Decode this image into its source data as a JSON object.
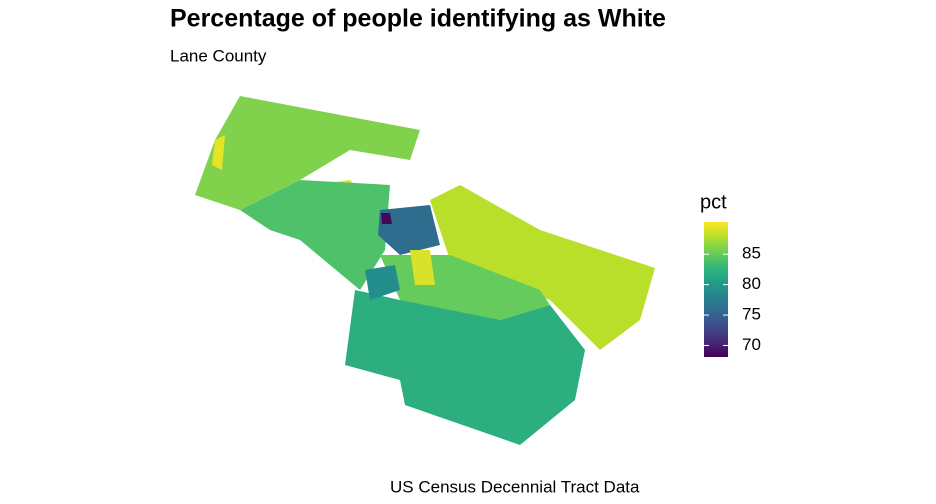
{
  "chart_data": {
    "type": "choropleth",
    "title": "Percentage of people identifying as White",
    "subtitle": "Lane County",
    "caption": "US Census Decennial Tract Data",
    "legend_title": "pct",
    "colormap": "viridis",
    "clim": [
      68.1,
      90.3
    ],
    "cticks": [
      70,
      75,
      80,
      85
    ],
    "regions": {
      "values": [
        86,
        89,
        84,
        76,
        68.5,
        88,
        85,
        82,
        79,
        89,
        89.5
      ]
    }
  }
}
